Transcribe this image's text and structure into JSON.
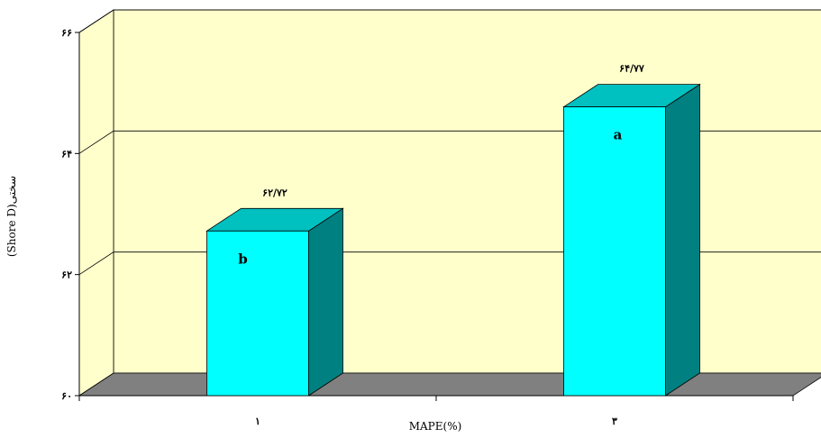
{
  "chart_data": {
    "type": "bar",
    "style": "3d-column",
    "categories": [
      "۱",
      "۳"
    ],
    "values": [
      62.72,
      64.77
    ],
    "value_labels": [
      "۶۲/۷۲",
      "۶۴/۷۷"
    ],
    "group_letters": [
      "b",
      "a"
    ],
    "xlabel": "MAPE(%)",
    "ylabel": "(Shore D)سختی",
    "ylim": [
      60,
      66
    ],
    "yticks": [
      60,
      62,
      64,
      66
    ],
    "ytick_labels": [
      "۶۰",
      "۶۲",
      "۶۴",
      "۶۶"
    ],
    "grid": true,
    "colors": {
      "wall": "#ffffcc",
      "floor": "#808080",
      "bar_front": "#00ffff",
      "bar_top": "#00c0c0",
      "bar_side": "#008080"
    }
  }
}
